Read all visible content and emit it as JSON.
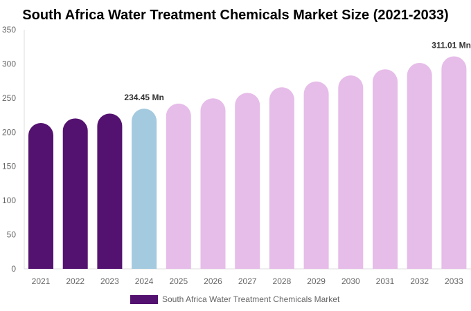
{
  "chart_data": {
    "type": "bar",
    "title": "South Africa Water Treatment Chemicals Market Size (2021-2033)",
    "xlabel": "",
    "ylabel": "",
    "ylim": [
      0,
      350
    ],
    "yticks": [
      0,
      50,
      100,
      150,
      200,
      250,
      300,
      350
    ],
    "grid": false,
    "legend_position": "bottom",
    "categories": [
      "2021",
      "2022",
      "2023",
      "2024",
      "2025",
      "2026",
      "2027",
      "2028",
      "2029",
      "2030",
      "2031",
      "2032",
      "2033"
    ],
    "series": [
      {
        "name": "South Africa Water Treatment Chemicals Market",
        "values": [
          213.4,
          220.2,
          227.2,
          234.45,
          241.9,
          249.6,
          257.6,
          265.8,
          274.3,
          283.1,
          292.1,
          301.4,
          311.01
        ]
      }
    ],
    "data_labels": [
      {
        "category": "2024",
        "text": "234.45 Mn"
      },
      {
        "category": "2033",
        "text": "311.01 Mn"
      }
    ],
    "colors": {
      "historical": "#541270",
      "base_year": "#a3cadf",
      "forecast": "#e6bce9",
      "legend": "#541270"
    },
    "color_by_category": [
      "historical",
      "historical",
      "historical",
      "base_year",
      "forecast",
      "forecast",
      "forecast",
      "forecast",
      "forecast",
      "forecast",
      "forecast",
      "forecast",
      "forecast"
    ]
  }
}
